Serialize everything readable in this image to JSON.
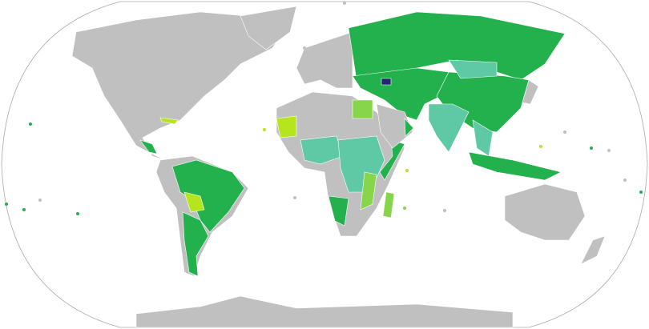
{
  "colors": {
    "ocean": "#ffffff",
    "outline": "#aaaaaa",
    "no_data": "#c0c0c0",
    "dark_green": "#22b14c",
    "teal": "#5fc9a5",
    "light_green": "#86d54a",
    "yellow_green": "#b5e61d",
    "navy": "#1f2a6b"
  },
  "regions": [
    {
      "id": "north-america",
      "status": "no_data"
    },
    {
      "id": "greenland",
      "status": "no_data"
    },
    {
      "id": "cuba",
      "status": "yellow_green"
    },
    {
      "id": "central-america",
      "status": "dark_green"
    },
    {
      "id": "south-america",
      "status": "no_data"
    },
    {
      "id": "brazil",
      "status": "dark_green"
    },
    {
      "id": "bolivia",
      "status": "yellow_green"
    },
    {
      "id": "argentina",
      "status": "dark_green"
    },
    {
      "id": "africa",
      "status": "no_data"
    },
    {
      "id": "mauritania",
      "status": "yellow_green"
    },
    {
      "id": "egypt",
      "status": "light_green"
    },
    {
      "id": "west-africa",
      "status": "teal"
    },
    {
      "id": "central-africa",
      "status": "teal"
    },
    {
      "id": "namibia",
      "status": "dark_green"
    },
    {
      "id": "mozambique",
      "status": "light_green"
    },
    {
      "id": "madagascar",
      "status": "light_green"
    },
    {
      "id": "somalia",
      "status": "dark_green"
    },
    {
      "id": "europe",
      "status": "no_data"
    },
    {
      "id": "russia",
      "status": "dark_green"
    },
    {
      "id": "central-asia",
      "status": "dark_green"
    },
    {
      "id": "armenia",
      "status": "navy"
    },
    {
      "id": "china",
      "status": "dark_green"
    },
    {
      "id": "mongolia",
      "status": "teal"
    },
    {
      "id": "india",
      "status": "teal"
    },
    {
      "id": "arabia",
      "status": "no_data"
    },
    {
      "id": "oman",
      "status": "dark_green"
    },
    {
      "id": "southeast-asia",
      "status": "teal"
    },
    {
      "id": "indonesia",
      "status": "dark_green"
    },
    {
      "id": "japan",
      "status": "no_data"
    },
    {
      "id": "australia",
      "status": "no_data"
    },
    {
      "id": "new-zealand",
      "status": "no_data"
    },
    {
      "id": "antarctica",
      "status": "no_data"
    }
  ]
}
